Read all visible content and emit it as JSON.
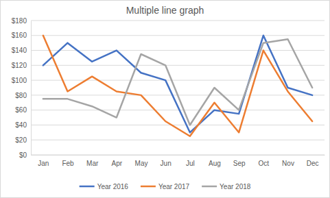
{
  "chart_data": {
    "type": "line",
    "title": "Multiple line graph",
    "categories": [
      "Jan",
      "Feb",
      "Mar",
      "Apr",
      "May",
      "Jun",
      "Jul",
      "Aug",
      "Sep",
      "Oct",
      "Nov",
      "Dec"
    ],
    "series": [
      {
        "name": "Year 2016",
        "color": "#4472c4",
        "values": [
          120,
          150,
          125,
          140,
          110,
          100,
          30,
          60,
          55,
          160,
          90,
          80
        ]
      },
      {
        "name": "Year 2017",
        "color": "#ed7d31",
        "values": [
          160,
          85,
          105,
          85,
          80,
          45,
          25,
          70,
          30,
          140,
          85,
          45
        ]
      },
      {
        "name": "Year 2018",
        "color": "#a5a5a5",
        "values": [
          75,
          75,
          65,
          50,
          135,
          120,
          40,
          90,
          60,
          150,
          155,
          90
        ]
      }
    ],
    "ylim": [
      0,
      180
    ],
    "yticks": [
      {
        "value": 0,
        "label": "$0"
      },
      {
        "value": 20,
        "label": "$20"
      },
      {
        "value": 40,
        "label": "$40"
      },
      {
        "value": 60,
        "label": "$60"
      },
      {
        "value": 80,
        "label": "$80"
      },
      {
        "value": 100,
        "label": "$100"
      },
      {
        "value": 120,
        "label": "$120"
      },
      {
        "value": 140,
        "label": "$140"
      },
      {
        "value": 160,
        "label": "$160"
      },
      {
        "value": 180,
        "label": "$180"
      }
    ],
    "grid": true,
    "legend": "bottom"
  }
}
